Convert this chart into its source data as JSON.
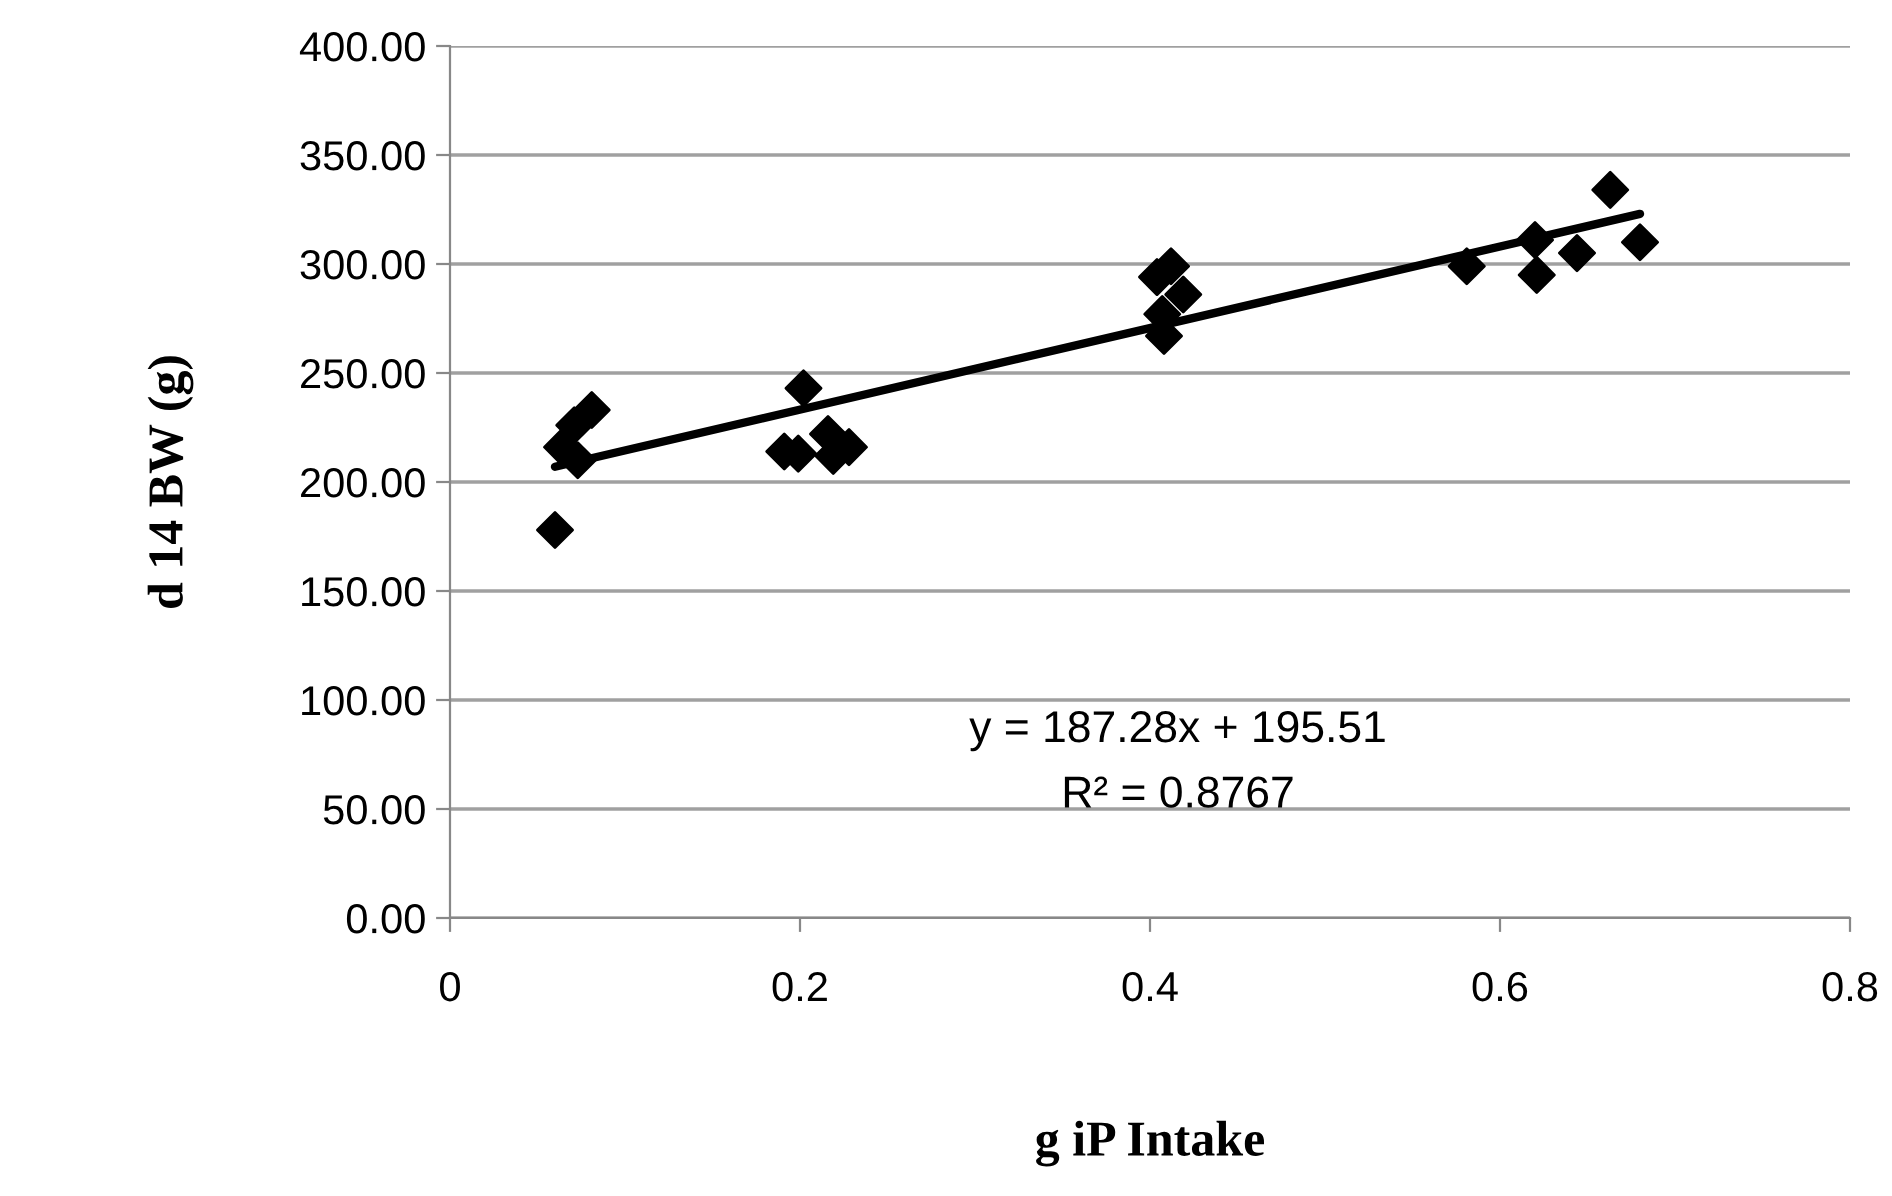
{
  "chart_data": {
    "type": "scatter",
    "xlabel": "g iP Intake",
    "ylabel": "d 14 BW (g)",
    "series": [
      {
        "color": "#000000",
        "marker": "diamond",
        "x": [
          0.06,
          0.081,
          0.071,
          0.064,
          0.073,
          0.202,
          0.191,
          0.199,
          0.216,
          0.219,
          0.228,
          0.412,
          0.404,
          0.419,
          0.407,
          0.408,
          0.581,
          0.62,
          0.621,
          0.644,
          0.663,
          0.68
        ],
        "values": [
          178,
          233,
          226,
          216,
          210,
          243,
          214,
          213,
          222,
          212,
          216,
          299,
          294,
          286,
          277,
          267,
          299,
          311,
          295,
          305,
          334,
          310
        ]
      },
      {
        "type": "line",
        "color": "#000000",
        "marker": "none",
        "x": [
          0.06,
          0.68
        ],
        "values": [
          207,
          323
        ]
      }
    ],
    "annotations": [
      "y = 187.28x + 195.51",
      "R² = 0.8767"
    ],
    "xlim": [
      0,
      0.8
    ],
    "xticks": [
      0,
      0.2,
      0.4,
      0.6,
      0.8
    ],
    "ylim": [
      0,
      400
    ],
    "yticks": [
      {
        "value": 0,
        "label": "0.00"
      },
      {
        "value": 50,
        "label": "50.00"
      },
      {
        "value": 100,
        "label": "100.00"
      },
      {
        "value": 150,
        "label": "150.00"
      },
      {
        "value": 200,
        "label": "200.00"
      },
      {
        "value": 250,
        "label": "250.00"
      },
      {
        "value": 300,
        "label": "300.00"
      },
      {
        "value": 350,
        "label": "350.00"
      },
      {
        "value": 400,
        "label": "400.00"
      }
    ],
    "grid": "y",
    "legend": false
  }
}
